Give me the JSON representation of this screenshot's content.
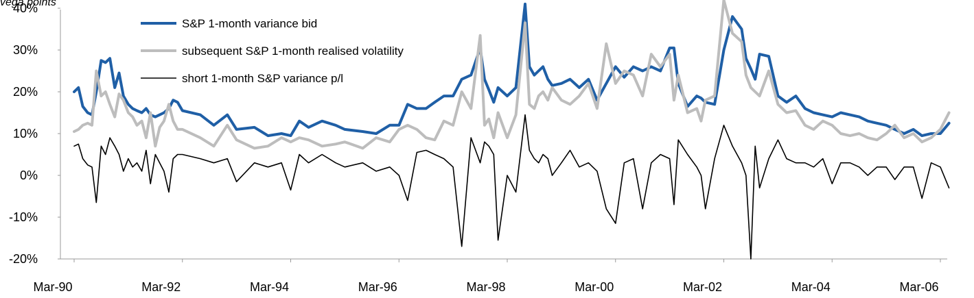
{
  "chart_data": {
    "type": "line",
    "ylabel": "vega points",
    "ylim": [
      -0.2,
      0.4
    ],
    "yticks": [
      -0.2,
      -0.1,
      0.0,
      0.1,
      0.2,
      0.3,
      0.4
    ],
    "ytick_labels": [
      "-20%",
      "-10%",
      "0%",
      "10%",
      "20%",
      "30%",
      "40%"
    ],
    "xlim": [
      1990.17,
      2006.33
    ],
    "xticks": [
      1990.17,
      1992.17,
      1994.17,
      1996.17,
      1998.17,
      2000.17,
      2002.17,
      2004.17,
      2006.17
    ],
    "xtick_labels": [
      "Mar-90",
      "Mar-92",
      "Mar-94",
      "Mar-96",
      "Mar-98",
      "Mar-00",
      "Mar-02",
      "Mar-04",
      "Mar-06"
    ],
    "grid": false,
    "legend_position": "top-center",
    "series": [
      {
        "name": "S&P 1-month variance bid",
        "color": "#1f5fa6",
        "width": 4,
        "x": [
          1990.17,
          1990.25,
          1990.33,
          1990.42,
          1990.5,
          1990.58,
          1990.67,
          1990.75,
          1990.83,
          1990.92,
          1991.0,
          1991.08,
          1991.17,
          1991.25,
          1991.33,
          1991.42,
          1991.5,
          1991.58,
          1991.67,
          1991.75,
          1991.83,
          1991.92,
          1992.0,
          1992.08,
          1992.17,
          1992.5,
          1992.75,
          1993.0,
          1993.17,
          1993.5,
          1993.75,
          1994.0,
          1994.17,
          1994.33,
          1994.5,
          1994.75,
          1995.0,
          1995.17,
          1995.5,
          1995.75,
          1996.0,
          1996.17,
          1996.33,
          1996.5,
          1996.67,
          1996.83,
          1997.0,
          1997.17,
          1997.33,
          1997.5,
          1997.67,
          1997.75,
          1997.83,
          1997.92,
          1998.0,
          1998.17,
          1998.33,
          1998.5,
          1998.58,
          1998.67,
          1998.75,
          1998.83,
          1998.92,
          1999.0,
          1999.17,
          1999.33,
          1999.5,
          1999.67,
          1999.83,
          2000.0,
          2000.17,
          2000.33,
          2000.5,
          2000.67,
          2000.83,
          2001.0,
          2001.17,
          2001.25,
          2001.33,
          2001.5,
          2001.67,
          2001.75,
          2001.83,
          2002.0,
          2002.17,
          2002.33,
          2002.5,
          2002.58,
          2002.67,
          2002.75,
          2002.83,
          2003.0,
          2003.17,
          2003.33,
          2003.5,
          2003.67,
          2003.83,
          2004.0,
          2004.17,
          2004.33,
          2004.5,
          2004.67,
          2004.83,
          2005.0,
          2005.17,
          2005.33,
          2005.5,
          2005.67,
          2005.83,
          2006.0,
          2006.17,
          2006.33
        ],
        "y": [
          0.2,
          0.21,
          0.165,
          0.15,
          0.145,
          0.2,
          0.275,
          0.27,
          0.28,
          0.21,
          0.245,
          0.19,
          0.17,
          0.16,
          0.155,
          0.15,
          0.16,
          0.145,
          0.14,
          0.145,
          0.15,
          0.16,
          0.18,
          0.175,
          0.155,
          0.145,
          0.12,
          0.145,
          0.11,
          0.115,
          0.095,
          0.1,
          0.095,
          0.13,
          0.115,
          0.13,
          0.12,
          0.11,
          0.105,
          0.1,
          0.12,
          0.12,
          0.17,
          0.16,
          0.16,
          0.175,
          0.19,
          0.19,
          0.23,
          0.24,
          0.305,
          0.23,
          0.205,
          0.175,
          0.21,
          0.19,
          0.21,
          0.41,
          0.26,
          0.24,
          0.25,
          0.26,
          0.23,
          0.215,
          0.22,
          0.23,
          0.21,
          0.23,
          0.18,
          0.22,
          0.26,
          0.235,
          0.26,
          0.25,
          0.26,
          0.25,
          0.305,
          0.305,
          0.22,
          0.165,
          0.19,
          0.185,
          0.175,
          0.17,
          0.3,
          0.38,
          0.35,
          0.28,
          0.255,
          0.23,
          0.29,
          0.285,
          0.19,
          0.175,
          0.19,
          0.16,
          0.15,
          0.145,
          0.14,
          0.15,
          0.145,
          0.14,
          0.13,
          0.125,
          0.12,
          0.11,
          0.1,
          0.11,
          0.095,
          0.1,
          0.1,
          0.125
        ]
      },
      {
        "name": "subsequent S&P 1-month realised volatility",
        "color": "#bdbdbd",
        "width": 4,
        "x": [
          1990.17,
          1990.25,
          1990.33,
          1990.42,
          1990.5,
          1990.58,
          1990.67,
          1990.75,
          1990.83,
          1990.92,
          1991.0,
          1991.08,
          1991.17,
          1991.25,
          1991.33,
          1991.42,
          1991.5,
          1991.58,
          1991.67,
          1991.75,
          1991.83,
          1991.92,
          1992.0,
          1992.08,
          1992.17,
          1992.5,
          1992.75,
          1993.0,
          1993.17,
          1993.5,
          1993.75,
          1994.0,
          1994.17,
          1994.33,
          1994.5,
          1994.75,
          1995.0,
          1995.17,
          1995.5,
          1995.75,
          1996.0,
          1996.17,
          1996.33,
          1996.5,
          1996.67,
          1996.83,
          1997.0,
          1997.17,
          1997.33,
          1997.5,
          1997.67,
          1997.75,
          1997.83,
          1997.92,
          1998.0,
          1998.17,
          1998.33,
          1998.5,
          1998.58,
          1998.67,
          1998.75,
          1998.83,
          1998.92,
          1999.0,
          1999.17,
          1999.33,
          1999.5,
          1999.67,
          1999.83,
          2000.0,
          2000.17,
          2000.33,
          2000.5,
          2000.67,
          2000.83,
          2001.0,
          2001.17,
          2001.25,
          2001.33,
          2001.5,
          2001.67,
          2001.75,
          2001.83,
          2002.0,
          2002.17,
          2002.33,
          2002.5,
          2002.58,
          2002.67,
          2002.75,
          2002.83,
          2003.0,
          2003.17,
          2003.33,
          2003.5,
          2003.67,
          2003.83,
          2004.0,
          2004.17,
          2004.33,
          2004.5,
          2004.67,
          2004.83,
          2005.0,
          2005.17,
          2005.33,
          2005.5,
          2005.67,
          2005.83,
          2006.0,
          2006.17,
          2006.33
        ],
        "y": [
          0.105,
          0.11,
          0.12,
          0.125,
          0.12,
          0.25,
          0.19,
          0.2,
          0.17,
          0.14,
          0.195,
          0.18,
          0.15,
          0.14,
          0.12,
          0.13,
          0.09,
          0.15,
          0.07,
          0.115,
          0.13,
          0.17,
          0.13,
          0.11,
          0.11,
          0.09,
          0.07,
          0.12,
          0.085,
          0.065,
          0.07,
          0.09,
          0.08,
          0.09,
          0.085,
          0.07,
          0.075,
          0.08,
          0.065,
          0.09,
          0.08,
          0.11,
          0.12,
          0.11,
          0.09,
          0.085,
          0.13,
          0.12,
          0.2,
          0.16,
          0.335,
          0.12,
          0.135,
          0.09,
          0.15,
          0.09,
          0.145,
          0.365,
          0.17,
          0.16,
          0.19,
          0.2,
          0.18,
          0.21,
          0.18,
          0.17,
          0.19,
          0.22,
          0.16,
          0.315,
          0.22,
          0.25,
          0.24,
          0.19,
          0.29,
          0.26,
          0.29,
          0.18,
          0.24,
          0.15,
          0.16,
          0.13,
          0.18,
          0.19,
          0.42,
          0.34,
          0.32,
          0.24,
          0.21,
          0.2,
          0.19,
          0.25,
          0.17,
          0.15,
          0.155,
          0.12,
          0.11,
          0.13,
          0.12,
          0.1,
          0.095,
          0.1,
          0.09,
          0.085,
          0.1,
          0.12,
          0.09,
          0.1,
          0.08,
          0.09,
          0.11,
          0.15
        ]
      },
      {
        "name": "short 1-month S&P variance p/l",
        "color": "#000000",
        "width": 1.6,
        "x": [
          1990.17,
          1990.25,
          1990.33,
          1990.42,
          1990.5,
          1990.58,
          1990.67,
          1990.75,
          1990.83,
          1990.92,
          1991.0,
          1991.08,
          1991.17,
          1991.25,
          1991.33,
          1991.42,
          1991.5,
          1991.58,
          1991.67,
          1991.75,
          1991.83,
          1991.92,
          1992.0,
          1992.08,
          1992.17,
          1992.5,
          1992.75,
          1993.0,
          1993.17,
          1993.5,
          1993.75,
          1994.0,
          1994.17,
          1994.33,
          1994.5,
          1994.75,
          1995.0,
          1995.17,
          1995.5,
          1995.75,
          1996.0,
          1996.17,
          1996.33,
          1996.5,
          1996.67,
          1996.83,
          1997.0,
          1997.17,
          1997.33,
          1997.5,
          1997.67,
          1997.75,
          1997.83,
          1997.92,
          1998.0,
          1998.17,
          1998.33,
          1998.5,
          1998.58,
          1998.67,
          1998.75,
          1998.83,
          1998.92,
          1999.0,
          1999.17,
          1999.33,
          1999.5,
          1999.67,
          1999.83,
          2000.0,
          2000.17,
          2000.33,
          2000.5,
          2000.67,
          2000.83,
          2001.0,
          2001.17,
          2001.25,
          2001.33,
          2001.5,
          2001.67,
          2001.75,
          2001.83,
          2002.0,
          2002.17,
          2002.33,
          2002.5,
          2002.58,
          2002.67,
          2002.75,
          2002.83,
          2003.0,
          2003.17,
          2003.33,
          2003.5,
          2003.67,
          2003.83,
          2004.0,
          2004.17,
          2004.33,
          2004.5,
          2004.67,
          2004.83,
          2005.0,
          2005.17,
          2005.33,
          2005.5,
          2005.67,
          2005.83,
          2006.0,
          2006.17,
          2006.33
        ],
        "y": [
          0.07,
          0.075,
          0.04,
          0.025,
          0.02,
          -0.065,
          0.07,
          0.05,
          0.09,
          0.07,
          0.05,
          0.01,
          0.04,
          0.02,
          0.03,
          0.01,
          0.06,
          -0.02,
          0.05,
          0.03,
          0.01,
          -0.04,
          0.04,
          0.05,
          0.05,
          0.04,
          0.03,
          0.04,
          -0.015,
          0.03,
          0.02,
          0.03,
          -0.035,
          0.05,
          0.03,
          0.05,
          0.03,
          0.02,
          0.03,
          0.01,
          0.02,
          0.0,
          -0.06,
          0.055,
          0.06,
          0.05,
          0.04,
          0.02,
          -0.17,
          0.09,
          0.03,
          0.08,
          0.07,
          0.05,
          -0.155,
          0.0,
          -0.04,
          0.145,
          0.06,
          0.04,
          0.03,
          0.05,
          0.04,
          0.0,
          0.03,
          0.06,
          0.02,
          0.03,
          0.01,
          -0.08,
          -0.115,
          0.03,
          0.04,
          -0.08,
          0.03,
          0.05,
          0.04,
          -0.07,
          0.085,
          0.05,
          0.02,
          0.0,
          -0.08,
          0.04,
          0.12,
          0.07,
          0.03,
          0.0,
          -0.2,
          0.07,
          -0.03,
          0.04,
          0.085,
          0.04,
          0.03,
          0.03,
          0.02,
          0.04,
          -0.02,
          0.03,
          0.03,
          0.02,
          0.0,
          0.02,
          0.02,
          -0.01,
          0.02,
          0.02,
          -0.055,
          0.03,
          0.02,
          -0.03
        ]
      }
    ]
  }
}
